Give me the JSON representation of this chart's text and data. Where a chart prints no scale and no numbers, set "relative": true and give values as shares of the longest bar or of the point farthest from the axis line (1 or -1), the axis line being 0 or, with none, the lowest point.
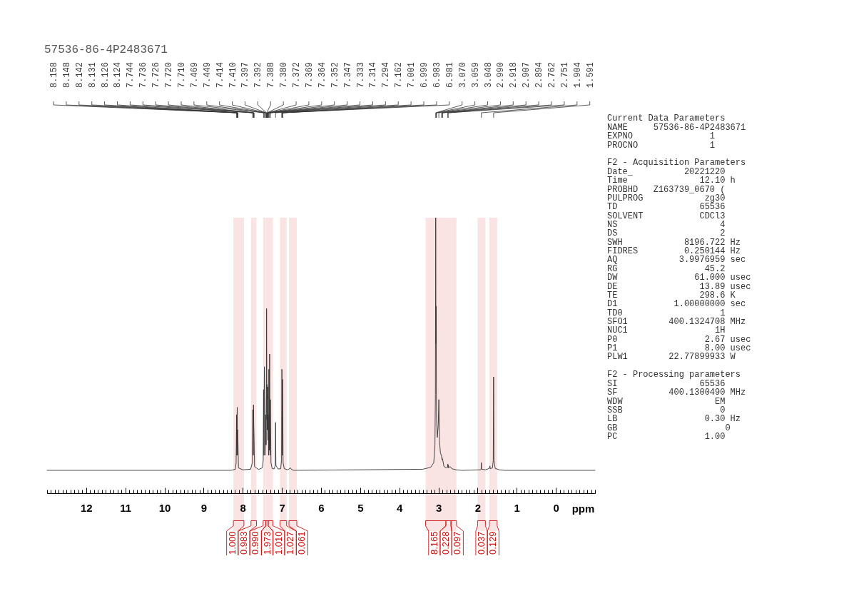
{
  "chart_data": [
    {
      "type": "line",
      "title": "57536-86-4P2483671",
      "xlabel": "ppm",
      "relative": true,
      "color": "#333333",
      "xlim": [
        13,
        -1
      ],
      "xticks": [
        {
          "value": 13,
          "label": null
        },
        {
          "value": 12.9,
          "label": null
        },
        {
          "value": 12.8,
          "label": null
        },
        {
          "value": 12.7,
          "label": null
        },
        {
          "value": 12.6,
          "label": null
        },
        {
          "value": 12.5,
          "label": null
        },
        {
          "value": 12.4,
          "label": null
        },
        {
          "value": 12.3,
          "label": null
        },
        {
          "value": 12.2,
          "label": null
        },
        {
          "value": 12.1,
          "label": null
        },
        12,
        {
          "value": 11.9,
          "label": null
        },
        {
          "value": 11.8,
          "label": null
        },
        {
          "value": 11.7,
          "label": null
        },
        {
          "value": 11.6,
          "label": null
        },
        {
          "value": 11.5,
          "label": null
        },
        {
          "value": 11.4,
          "label": null
        },
        {
          "value": 11.3,
          "label": null
        },
        {
          "value": 11.2,
          "label": null
        },
        {
          "value": 11.1,
          "label": null
        },
        11,
        {
          "value": 10.9,
          "label": null
        },
        {
          "value": 10.8,
          "label": null
        },
        {
          "value": 10.7,
          "label": null
        },
        {
          "value": 10.6,
          "label": null
        },
        {
          "value": 10.5,
          "label": null
        },
        {
          "value": 10.4,
          "label": null
        },
        {
          "value": 10.3,
          "label": null
        },
        {
          "value": 10.2,
          "label": null
        },
        {
          "value": 10.1,
          "label": null
        },
        10,
        {
          "value": 9.9,
          "label": null
        },
        {
          "value": 9.8,
          "label": null
        },
        {
          "value": 9.7,
          "label": null
        },
        {
          "value": 9.6,
          "label": null
        },
        {
          "value": 9.5,
          "label": null
        },
        {
          "value": 9.4,
          "label": null
        },
        {
          "value": 9.3,
          "label": null
        },
        {
          "value": 9.2,
          "label": null
        },
        {
          "value": 9.1,
          "label": null
        },
        9,
        {
          "value": 8.9,
          "label": null
        },
        {
          "value": 8.8,
          "label": null
        },
        {
          "value": 8.7,
          "label": null
        },
        {
          "value": 8.6,
          "label": null
        },
        {
          "value": 8.5,
          "label": null
        },
        {
          "value": 8.4,
          "label": null
        },
        {
          "value": 8.3,
          "label": null
        },
        {
          "value": 8.2,
          "label": null
        },
        {
          "value": 8.1,
          "label": null
        },
        8,
        {
          "value": 7.9,
          "label": null
        },
        {
          "value": 7.8,
          "label": null
        },
        {
          "value": 7.7,
          "label": null
        },
        {
          "value": 7.6,
          "label": null
        },
        {
          "value": 7.5,
          "label": null
        },
        {
          "value": 7.4,
          "label": null
        },
        {
          "value": 7.3,
          "label": null
        },
        {
          "value": 7.2,
          "label": null
        },
        {
          "value": 7.1,
          "label": null
        },
        7,
        {
          "value": 6.9,
          "label": null
        },
        {
          "value": 6.8,
          "label": null
        },
        {
          "value": 6.7,
          "label": null
        },
        {
          "value": 6.6,
          "label": null
        },
        {
          "value": 6.5,
          "label": null
        },
        {
          "value": 6.4,
          "label": null
        },
        {
          "value": 6.3,
          "label": null
        },
        {
          "value": 6.2,
          "label": null
        },
        {
          "value": 6.1,
          "label": null
        },
        6,
        {
          "value": 5.9,
          "label": null
        },
        {
          "value": 5.8,
          "label": null
        },
        {
          "value": 5.7,
          "label": null
        },
        {
          "value": 5.6,
          "label": null
        },
        {
          "value": 5.5,
          "label": null
        },
        {
          "value": 5.4,
          "label": null
        },
        {
          "value": 5.3,
          "label": null
        },
        {
          "value": 5.2,
          "label": null
        },
        {
          "value": 5.1,
          "label": null
        },
        5,
        {
          "value": 4.9,
          "label": null
        },
        {
          "value": 4.8,
          "label": null
        },
        {
          "value": 4.7,
          "label": null
        },
        {
          "value": 4.6,
          "label": null
        },
        {
          "value": 4.5,
          "label": null
        },
        {
          "value": 4.4,
          "label": null
        },
        {
          "value": 4.3,
          "label": null
        },
        {
          "value": 4.2,
          "label": null
        },
        {
          "value": 4.1,
          "label": null
        },
        4,
        {
          "value": 3.9,
          "label": null
        },
        {
          "value": 3.8,
          "label": null
        },
        {
          "value": 3.7,
          "label": null
        },
        {
          "value": 3.6,
          "label": null
        },
        {
          "value": 3.5,
          "label": null
        },
        {
          "value": 3.4,
          "label": null
        },
        {
          "value": 3.3,
          "label": null
        },
        {
          "value": 3.2,
          "label": null
        },
        {
          "value": 3.1,
          "label": null
        },
        3,
        {
          "value": 2.9,
          "label": null
        },
        {
          "value": 2.8,
          "label": null
        },
        {
          "value": 2.7,
          "label": null
        },
        {
          "value": 2.6,
          "label": null
        },
        {
          "value": 2.5,
          "label": null
        },
        {
          "value": 2.4,
          "label": null
        },
        {
          "value": 2.3,
          "label": null
        },
        {
          "value": 2.2,
          "label": null
        },
        {
          "value": 2.1,
          "label": null
        },
        2,
        {
          "value": 1.9,
          "label": null
        },
        {
          "value": 1.8,
          "label": null
        },
        {
          "value": 1.7,
          "label": null
        },
        {
          "value": 1.6,
          "label": null
        },
        {
          "value": 1.5,
          "label": null
        },
        {
          "value": 1.4,
          "label": null
        },
        {
          "value": 1.3,
          "label": null
        },
        {
          "value": 1.2,
          "label": null
        },
        {
          "value": 1.1,
          "label": null
        },
        1,
        {
          "value": 0.9,
          "label": null
        },
        {
          "value": 0.8,
          "label": null
        },
        {
          "value": 0.7,
          "label": null
        },
        {
          "value": 0.6,
          "label": null
        },
        {
          "value": 0.5,
          "label": null
        },
        {
          "value": 0.4,
          "label": null
        },
        {
          "value": 0.3,
          "label": null
        },
        {
          "value": 0.2,
          "label": null
        },
        {
          "value": 0.1,
          "label": null
        },
        0,
        {
          "value": -0.1,
          "label": null
        },
        {
          "value": -0.2,
          "label": null
        },
        {
          "value": -0.3,
          "label": null
        },
        {
          "value": -0.4,
          "label": null
        },
        {
          "value": -0.5,
          "label": null
        },
        {
          "value": -0.6,
          "label": null
        },
        {
          "value": -0.7,
          "label": null
        },
        {
          "value": -0.8,
          "label": null
        },
        {
          "value": -0.9,
          "label": null
        },
        {
          "value": -1,
          "label": null
        }
      ],
      "x": [
        13,
        8.3,
        8.19,
        8.17,
        8.158,
        8.153,
        8.148,
        8.142,
        8.136,
        8.131,
        8.126,
        8.124,
        8.11,
        8,
        7.8,
        7.755,
        7.744,
        7.736,
        7.731,
        7.726,
        7.72,
        7.71,
        7.7,
        7.6,
        7.5,
        7.478,
        7.469,
        7.459,
        7.449,
        7.43,
        7.414,
        7.41,
        7.404,
        7.397,
        7.392,
        7.388,
        7.384,
        7.38,
        7.376,
        7.372,
        7.369,
        7.364,
        7.358,
        7.352,
        7.347,
        7.34,
        7.333,
        7.324,
        7.314,
        7.305,
        7.294,
        7.28,
        7.25,
        7.2,
        7.17,
        7.162,
        7.154,
        7.1,
        7.03,
        7.01,
        7.001,
        6.999,
        6.991,
        6.983,
        6.981,
        6.97,
        6.94,
        6.85,
        6.8,
        6.78,
        6.76,
        6.7,
        3.4,
        3.2,
        3.12,
        3.09,
        3.078,
        3.07,
        3.064,
        3.059,
        3.053,
        3.048,
        3.03,
        3.005,
        2.99,
        2.975,
        2.95,
        2.918,
        2.912,
        2.907,
        2.9,
        2.894,
        2.86,
        2.8,
        2.768,
        2.762,
        2.757,
        2.751,
        2.745,
        2.7,
        2.66,
        2.55,
        2.4,
        1.93,
        1.91,
        1.904,
        1.898,
        1.8,
        1.7,
        1.685,
        1.675,
        1.62,
        1.6,
        1.591,
        1.582,
        1.55,
        1.45,
        1.3,
        -1
      ],
      "values": [
        0.083,
        0.083,
        0.087,
        0.111,
        0.285,
        0.138,
        0.257,
        0.312,
        0.138,
        0.23,
        0.193,
        0.193,
        0.092,
        0.085,
        0.087,
        0.111,
        0.303,
        0.266,
        0.138,
        0.321,
        0.248,
        0.193,
        0.097,
        0.086,
        0.092,
        0.12,
        0.376,
        0.138,
        0.459,
        0.138,
        0.285,
        0.266,
        0.175,
        0.386,
        0.67,
        0.496,
        0.266,
        0.395,
        0.23,
        0.358,
        0.34,
        0.386,
        0.193,
        0.285,
        0.266,
        0.138,
        0.45,
        0.156,
        0.505,
        0.138,
        0.34,
        0.111,
        0.09,
        0.088,
        0.101,
        0.257,
        0.101,
        0.088,
        0.089,
        0.12,
        0.45,
        0.441,
        0.138,
        0.413,
        0.404,
        0.111,
        0.089,
        0.085,
        0.09,
        0.092,
        0.087,
        0.083,
        0.087,
        0.094,
        0.111,
        0.175,
        0.358,
        1,
        0.542,
        0.679,
        0.358,
        0.266,
        0.202,
        0.248,
        0.34,
        0.193,
        0.147,
        0.133,
        0.124,
        0.129,
        0.12,
        0.124,
        0.097,
        0.092,
        0.094,
        0.106,
        0.094,
        0.103,
        0.092,
        0.097,
        0.089,
        0.085,
        0.083,
        0.085,
        0.087,
        0.111,
        0.087,
        0.085,
        0.09,
        0.099,
        0.089,
        0.092,
        0.12,
        0.422,
        0.12,
        0.09,
        0.085,
        0.083,
        0.083
      ],
      "annotations": [
        "8.158",
        "8.148",
        "8.142",
        "8.131",
        "8.126",
        "8.124",
        "7.744",
        "7.736",
        "7.726",
        "7.720",
        "7.710",
        "7.469",
        "7.449",
        "7.414",
        "7.410",
        "7.397",
        "7.392",
        "7.388",
        "7.380",
        "7.372",
        "7.369",
        "7.364",
        "7.352",
        "7.347",
        "7.333",
        "7.314",
        "7.294",
        "7.162",
        "7.001",
        "6.999",
        "6.983",
        "6.981",
        "3.070",
        "3.059",
        "3.048",
        "2.990",
        "2.918",
        "2.907",
        "2.894",
        "2.762",
        "2.751",
        "1.904",
        "1.591"
      ],
      "bands": [
        {
          "axis": "x",
          "from": 8.24,
          "to": 7.97,
          "label": "1.000",
          "color": "#fae3e3"
        },
        {
          "axis": "x",
          "from": 7.79,
          "to": 7.65,
          "label": "0.983",
          "color": "#fae3e3"
        },
        {
          "axis": "x",
          "from": 7.48,
          "to": 7.41,
          "label": "0.990",
          "color": "#fae3e3"
        },
        {
          "axis": "x",
          "from": 7.41,
          "to": 7.35,
          "label": "1.973",
          "color": "#fae3e3"
        },
        {
          "axis": "x",
          "from": 7.35,
          "to": 7.23,
          "label": "1.010",
          "color": "#fae3e3"
        },
        {
          "axis": "x",
          "from": 7.05,
          "to": 6.88,
          "label": "1.027",
          "color": "#fae3e3"
        },
        {
          "axis": "x",
          "from": 6.82,
          "to": 6.62,
          "label": "0.061",
          "color": "#fae3e3"
        },
        {
          "axis": "x",
          "from": 3.33,
          "to": 2.81,
          "label": "8.165",
          "color": "#fae3e3"
        },
        {
          "axis": "x",
          "from": 2.81,
          "to": 2.68,
          "label": "0.228",
          "color": "#fae3e3"
        },
        {
          "axis": "x",
          "from": 2.68,
          "to": 2.54,
          "label": "0.097",
          "color": "#fae3e3"
        },
        {
          "axis": "x",
          "from": 2.0,
          "to": 1.8,
          "label": "0.037",
          "color": "#fae3e3"
        },
        {
          "axis": "x",
          "from": 1.7,
          "to": 1.5,
          "label": "0.129",
          "color": "#fae3e3"
        }
      ]
    },
    {
      "type": "other",
      "title": "Current Data Parameters",
      "annotations": [
        "NAME     57536-86-4P2483671",
        "EXPNO               1",
        "PROCNO              1"
      ]
    },
    {
      "type": "other",
      "title": "F2 - Acquisition Parameters",
      "annotations": [
        "Date_          20221220",
        "Time              12.10 h",
        "PROBHD   Z163739_0670 (",
        "PULPROG            zg30",
        "TD                65536",
        "SOLVENT           CDCl3",
        "NS                    4",
        "DS                    2",
        "SWH            8196.722 Hz",
        "FIDRES         0.250144 Hz",
        "AQ            3.9976959 sec",
        "RG                 45.2",
        "DW               61.000 usec",
        "DE                13.89 usec",
        "TE                298.6 K",
        "D1           1.00000000 sec",
        "TD0                   1",
        "SFO1        400.1324708 MHz",
        "NUC1                 1H",
        "P0                 2.67 usec",
        "P1                 8.00 usec",
        "PLW1        22.77899933 W"
      ]
    },
    {
      "type": "other",
      "title": "F2 - Processing parameters",
      "annotations": [
        "SI                65536",
        "SF          400.1300490 MHz",
        "WDW                  EM",
        "SSB                   0",
        "LB                 0.30 Hz",
        "GB                     0",
        "PC                 1.00"
      ]
    }
  ]
}
